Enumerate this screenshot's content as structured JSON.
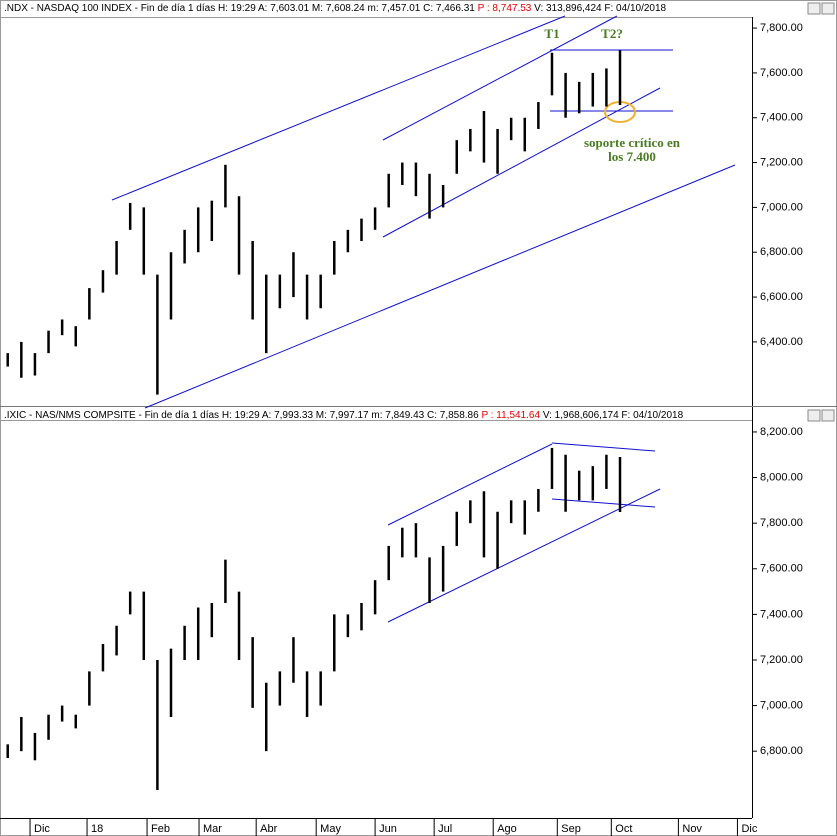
{
  "chart_data": [
    {
      "type": "hilo",
      "color": "#000000",
      "header": [
        ".NDX - NASDAQ 100 INDEX - Fin de día 1 días H: 19:29 A: 7,603.01 M: 7,608.24 m: 7,457.01 C: 7,466.31",
        "P : 8,747.53",
        "V: 313,896,424 F: 04/10/2018"
      ],
      "annotations": [
        "T1",
        "T2?",
        "soporte crítico en",
        "los 7.400"
      ],
      "x": [
        -1,
        0,
        1,
        2,
        3,
        4,
        5,
        6,
        7,
        8,
        9,
        10,
        11,
        12,
        13,
        14,
        15,
        16,
        17,
        18,
        19,
        20,
        21,
        22,
        23,
        24,
        25,
        26,
        27,
        28,
        29,
        30,
        31,
        32,
        33,
        34,
        35,
        36,
        37,
        38,
        39,
        40,
        41,
        42,
        43,
        44
      ],
      "high": [
        6350,
        6400,
        6350,
        6450,
        6500,
        6470,
        6640,
        6720,
        6850,
        7020,
        7000,
        6700,
        6800,
        6900,
        7000,
        7030,
        7190,
        7050,
        6850,
        6700,
        6700,
        6800,
        6700,
        6700,
        6850,
        6900,
        6950,
        7000,
        7150,
        7200,
        7200,
        7150,
        7100,
        7300,
        7350,
        7430,
        7350,
        7400,
        7400,
        7470,
        7690,
        7600,
        7560,
        7600,
        7620,
        7700
      ],
      "low": [
        6290,
        6240,
        6250,
        6350,
        6430,
        6380,
        6500,
        6620,
        6700,
        6900,
        6700,
        6165,
        6500,
        6750,
        6800,
        6850,
        7000,
        6700,
        6500,
        6350,
        6550,
        6600,
        6500,
        6550,
        6700,
        6800,
        6850,
        6900,
        7000,
        7100,
        7050,
        6950,
        7000,
        7150,
        7250,
        7200,
        7150,
        7300,
        7250,
        7350,
        7500,
        7400,
        7420,
        7450,
        7450,
        7457
      ],
      "xlim": [
        -1.2,
        53.7
      ],
      "ylim": [
        6114,
        7845
      ],
      "yticks": [
        {
          "value": 6400,
          "label": "6,400.00"
        },
        {
          "value": 6600,
          "label": "6,600.00"
        },
        {
          "value": 6800,
          "label": "6,800.00"
        },
        {
          "value": 7000,
          "label": "7,000.00"
        },
        {
          "value": 7200,
          "label": "7,200.00"
        },
        {
          "value": 7400,
          "label": "7,400.00"
        },
        {
          "value": 7600,
          "label": "7,600.00"
        },
        {
          "value": 7800,
          "label": "7,800.00"
        }
      ]
    },
    {
      "type": "hilo",
      "color": "#000000",
      "header": [
        ".IXIC - NAS/NMS COMPSITE - Fin de día 1 días H: 19:29 A: 7,993.33 M: 7,997.17 m: 7,849.43 C: 7,858.86",
        "P : 11,541.64",
        "V: 1,968,606,174 F: 04/10/2018"
      ],
      "x": [
        -1,
        0,
        1,
        2,
        3,
        4,
        5,
        6,
        7,
        8,
        9,
        10,
        11,
        12,
        13,
        14,
        15,
        16,
        17,
        18,
        19,
        20,
        21,
        22,
        23,
        24,
        25,
        26,
        27,
        28,
        29,
        30,
        31,
        32,
        33,
        34,
        35,
        36,
        37,
        38,
        39,
        40,
        41,
        42,
        43,
        44
      ],
      "high": [
        6830,
        6950,
        6880,
        6960,
        7000,
        6960,
        7150,
        7270,
        7350,
        7500,
        7500,
        7200,
        7250,
        7350,
        7430,
        7450,
        7640,
        7500,
        7300,
        7100,
        7150,
        7300,
        7150,
        7150,
        7400,
        7400,
        7450,
        7550,
        7700,
        7780,
        7800,
        7650,
        7700,
        7850,
        7900,
        7940,
        7850,
        7900,
        7900,
        7950,
        8130,
        8100,
        8030,
        8050,
        8100,
        8090
      ],
      "low": [
        6770,
        6800,
        6760,
        6850,
        6930,
        6900,
        7000,
        7150,
        7220,
        7400,
        7200,
        6630,
        6950,
        7200,
        7200,
        7300,
        7450,
        7200,
        6990,
        6800,
        7000,
        7100,
        6950,
        7000,
        7150,
        7300,
        7330,
        7400,
        7550,
        7650,
        7650,
        7450,
        7500,
        7700,
        7800,
        7650,
        7600,
        7800,
        7750,
        7850,
        7950,
        7850,
        7900,
        7900,
        7950,
        7849
      ],
      "xlim": [
        -1.2,
        53.7
      ],
      "ylim": [
        6507,
        8248
      ],
      "yticks": [
        {
          "value": 6800,
          "label": "6,800.00"
        },
        {
          "value": 7000,
          "label": "7,000.00"
        },
        {
          "value": 7200,
          "label": "7,200.00"
        },
        {
          "value": 7400,
          "label": "7,400.00"
        },
        {
          "value": 7600,
          "label": "7,600.00"
        },
        {
          "value": 7800,
          "label": "7,800.00"
        },
        {
          "value": 8000,
          "label": "8,000.00"
        },
        {
          "value": 8200,
          "label": "8,200.00"
        }
      ],
      "xticks": [
        {
          "value": 0.64,
          "label": "Dic"
        },
        {
          "value": 4.83,
          "label": "18"
        },
        {
          "value": 9.24,
          "label": "Feb"
        },
        {
          "value": 13.06,
          "label": "Mar"
        },
        {
          "value": 17.26,
          "label": "Abr"
        },
        {
          "value": 21.67,
          "label": "May"
        },
        {
          "value": 26.0,
          "label": "Jun"
        },
        {
          "value": 30.34,
          "label": "Jul"
        },
        {
          "value": 34.68,
          "label": "Ago"
        },
        {
          "value": 39.39,
          "label": "Sep"
        },
        {
          "value": 43.36,
          "label": "Oct"
        },
        {
          "value": 48.29,
          "label": "Nov"
        },
        {
          "value": 52.63,
          "label": "Dic"
        }
      ]
    }
  ]
}
